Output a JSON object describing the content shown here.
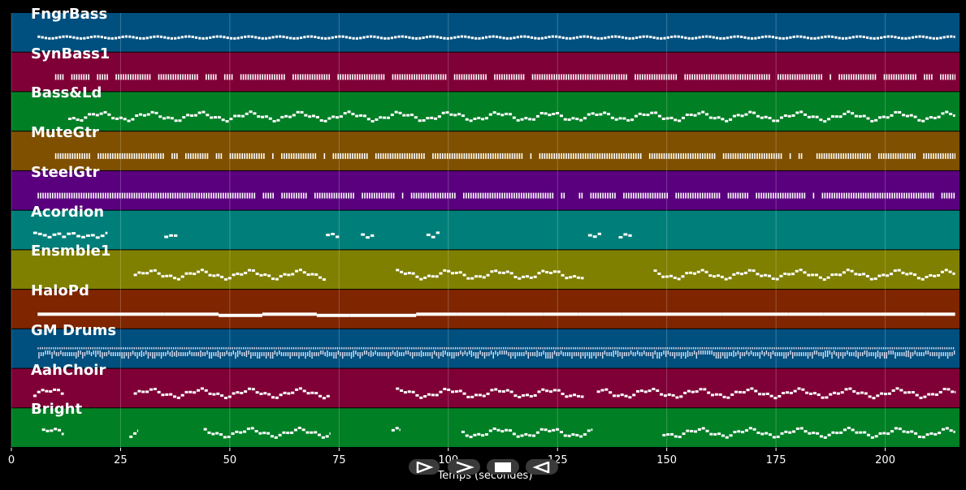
{
  "chart_data": {
    "type": "piano-roll",
    "xlabel": "Temps (secondes)",
    "xlim": [
      0,
      217
    ],
    "xticks": [
      0,
      25,
      50,
      75,
      100,
      125,
      150,
      175,
      200
    ],
    "grid": true,
    "tracks": [
      {
        "name": "FngrBass",
        "color": "#00507f",
        "active": [
          [
            6,
            216
          ]
        ],
        "pattern": "bass"
      },
      {
        "name": "SynBass1",
        "color": "#7f0036",
        "active": [
          [
            10,
            216
          ]
        ],
        "pattern": "pulse"
      },
      {
        "name": "Bass&Ld",
        "color": "#007f25",
        "active": [
          [
            13,
            216
          ]
        ],
        "pattern": "melody"
      },
      {
        "name": "MuteGtr",
        "color": "#7f5000",
        "active": [
          [
            10,
            216
          ]
        ],
        "pattern": "pulse"
      },
      {
        "name": "SteelGtr",
        "color": "#5a007f",
        "active": [
          [
            6,
            216
          ]
        ],
        "pattern": "pulse"
      },
      {
        "name": "Acordion",
        "color": "#007f7a",
        "active": [
          [
            5,
            22
          ],
          [
            35,
            38
          ],
          [
            72,
            75
          ],
          [
            80,
            83
          ],
          [
            95,
            98
          ],
          [
            132,
            135
          ],
          [
            139,
            142
          ]
        ],
        "pattern": "sparse"
      },
      {
        "name": "Ensmble1",
        "color": "#7f7f00",
        "active": [
          [
            28,
            72
          ],
          [
            88,
            131
          ],
          [
            147,
            216
          ]
        ],
        "pattern": "melody"
      },
      {
        "name": "HaloPd",
        "color": "#7f2500",
        "active": [
          [
            6,
            216
          ]
        ],
        "pattern": "pad"
      },
      {
        "name": "GM Drums",
        "color": "#00507f",
        "active": [
          [
            6,
            216
          ]
        ],
        "pattern": "drums"
      },
      {
        "name": "AahChoir",
        "color": "#7f0036",
        "active": [
          [
            5,
            12
          ],
          [
            28,
            73
          ],
          [
            88,
            131
          ],
          [
            134,
            216
          ]
        ],
        "pattern": "melody"
      },
      {
        "name": "Bright",
        "color": "#007f25",
        "active": [
          [
            7,
            12
          ],
          [
            27,
            29
          ],
          [
            44,
            73
          ],
          [
            87,
            89
          ],
          [
            103,
            133
          ],
          [
            149,
            216
          ]
        ],
        "pattern": "melody"
      }
    ]
  },
  "controls": [
    {
      "name": "play-button",
      "icon": "play-outline-icon"
    },
    {
      "name": "forward-button",
      "icon": "chevron-right-icon"
    },
    {
      "name": "stop-button",
      "icon": "stop-icon"
    },
    {
      "name": "rewind-button",
      "icon": "triangle-left-icon"
    }
  ]
}
